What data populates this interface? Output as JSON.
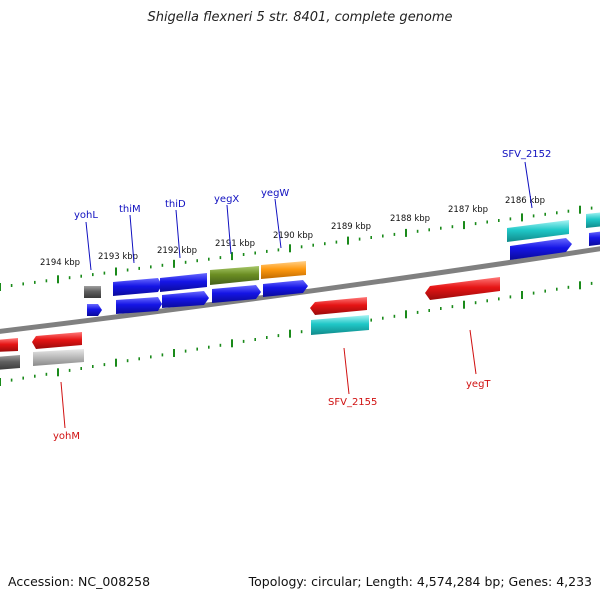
{
  "title": "Shigella flexneri 5 str. 8401, complete genome",
  "footer": {
    "accession": "Accession: NC_008258",
    "summary": "Topology: circular; Length: 4,574,284 bp; Genes: 4,233"
  },
  "scale_labels": [
    "2194 kbp",
    "2193 kbp",
    "2192 kbp",
    "2191 kbp",
    "2190 kbp",
    "2189 kbp",
    "2188 kbp",
    "2187 kbp",
    "2186 kbp"
  ],
  "genes": {
    "yohL": "yohL",
    "thiM": "thiM",
    "thiD": "thiD",
    "yegX": "yegX",
    "yegW": "yegW",
    "SFV_2152": "SFV_2152",
    "SFV_2155": "SFV_2155",
    "yegT": "yegT",
    "yohM": "yohM"
  },
  "colors": {
    "forward_label": "#1010c0",
    "reverse_label": "#d01010",
    "tick": "#1a8a1a",
    "backbone": "#7a7a7a",
    "blue": "#1515e6",
    "red": "#e61515",
    "cyan": "#20c8c8",
    "olive": "#6b8e23",
    "orange": "#ff9a10",
    "gray_dark": "#606060",
    "gray_light": "#b8b8b8"
  }
}
